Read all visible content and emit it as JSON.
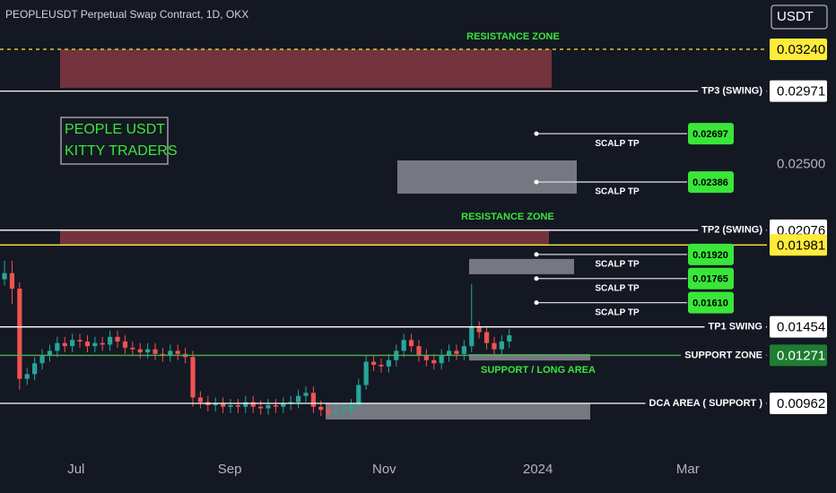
{
  "chart_data": {
    "type": "candlestick",
    "title": "PEOPLEUSDT Perpetual Swap Contract, 1D, OKX",
    "currency": "USDT",
    "annotation_box": [
      "PEOPLE USDT",
      "KITTY TRADERS"
    ],
    "up_color": "#26a69a",
    "down_color": "#ef5350",
    "open": [
      0.0176,
      0.018,
      0.017,
      0.0112,
      0.0115,
      0.0122,
      0.0127,
      0.013,
      0.0135,
      0.0133,
      0.0137,
      0.0136,
      0.0133,
      0.0135,
      0.0134,
      0.0139,
      0.0136,
      0.0132,
      0.0131,
      0.0129,
      0.0131,
      0.0128,
      0.0127,
      0.013,
      0.0128,
      0.0126,
      0.01,
      0.0097,
      0.0095,
      0.0096,
      0.0094,
      0.0095,
      0.0094,
      0.0097,
      0.0094,
      0.0093,
      0.0095,
      0.0094,
      0.0096,
      0.0097,
      0.0101,
      0.0103,
      0.0094,
      0.0092,
      0.009,
      0.0091,
      0.0092,
      0.0095,
      0.0108,
      0.0123,
      0.0121,
      0.012,
      0.0124,
      0.013,
      0.0137,
      0.0133,
      0.0127,
      0.0124,
      0.0122,
      0.0127,
      0.013,
      0.0128,
      0.0133,
      0.0145,
      0.0142,
      0.0135,
      0.0131,
      0.0136
    ],
    "high": [
      0.0188,
      0.0188,
      0.0174,
      0.0119,
      0.0126,
      0.0131,
      0.0134,
      0.0139,
      0.0139,
      0.0141,
      0.0141,
      0.014,
      0.0139,
      0.0139,
      0.0143,
      0.0143,
      0.014,
      0.0136,
      0.0135,
      0.0135,
      0.0135,
      0.0132,
      0.0134,
      0.0134,
      0.0132,
      0.013,
      0.0104,
      0.0101,
      0.01,
      0.01,
      0.0099,
      0.0099,
      0.0101,
      0.0101,
      0.0098,
      0.0099,
      0.0099,
      0.01,
      0.0101,
      0.0105,
      0.0107,
      0.0107,
      0.0098,
      0.0096,
      0.0095,
      0.0096,
      0.0099,
      0.0112,
      0.0127,
      0.0127,
      0.0125,
      0.0128,
      0.0134,
      0.0141,
      0.0141,
      0.0137,
      0.0131,
      0.0128,
      0.0131,
      0.0134,
      0.0134,
      0.0137,
      0.0173,
      0.0149,
      0.0146,
      0.0139,
      0.014,
      0.0144
    ],
    "low": [
      0.0172,
      0.016,
      0.0105,
      0.0108,
      0.0111,
      0.0118,
      0.0123,
      0.0126,
      0.0129,
      0.0129,
      0.0132,
      0.0129,
      0.0129,
      0.013,
      0.013,
      0.0132,
      0.0128,
      0.0127,
      0.0125,
      0.0125,
      0.0124,
      0.0123,
      0.0123,
      0.0124,
      0.0122,
      0.0094,
      0.0093,
      0.0091,
      0.0091,
      0.009,
      0.009,
      0.009,
      0.009,
      0.009,
      0.0089,
      0.0089,
      0.009,
      0.009,
      0.0092,
      0.0093,
      0.0097,
      0.009,
      0.0088,
      0.0087,
      0.0087,
      0.0088,
      0.0089,
      0.0092,
      0.0105,
      0.0117,
      0.0116,
      0.0116,
      0.012,
      0.0126,
      0.0129,
      0.0123,
      0.012,
      0.0118,
      0.0118,
      0.0123,
      0.0124,
      0.0124,
      0.0129,
      0.0138,
      0.0131,
      0.0127,
      0.0127,
      0.0132
    ],
    "close": [
      0.018,
      0.017,
      0.0112,
      0.0115,
      0.0122,
      0.0127,
      0.013,
      0.0135,
      0.0133,
      0.0137,
      0.0136,
      0.0133,
      0.0135,
      0.0134,
      0.0139,
      0.0136,
      0.0132,
      0.0131,
      0.0129,
      0.0131,
      0.0128,
      0.0127,
      0.013,
      0.0128,
      0.0126,
      0.01,
      0.0097,
      0.0095,
      0.0096,
      0.0094,
      0.0095,
      0.0094,
      0.0097,
      0.0094,
      0.0093,
      0.0095,
      0.0094,
      0.0096,
      0.0097,
      0.0101,
      0.0103,
      0.0094,
      0.0092,
      0.009,
      0.0091,
      0.0092,
      0.0095,
      0.0108,
      0.0123,
      0.0121,
      0.012,
      0.0124,
      0.013,
      0.0137,
      0.0133,
      0.0127,
      0.0124,
      0.0122,
      0.0127,
      0.013,
      0.0128,
      0.0133,
      0.0145,
      0.0142,
      0.0135,
      0.0131,
      0.0136,
      0.014
    ],
    "xlim": [
      -0.6,
      101.2
    ],
    "xticks": [
      {
        "value": 9.5,
        "label": "Jul"
      },
      {
        "value": 29.9,
        "label": "Sep"
      },
      {
        "value": 50.4,
        "label": "Nov"
      },
      {
        "value": 70.8,
        "label": "2024"
      },
      {
        "value": 90.7,
        "label": "Mar"
      }
    ],
    "ylim": [
      0.00616,
      0.03557
    ],
    "yticks": [
      {
        "value": 0.025,
        "label": "0.02500"
      }
    ],
    "levels": [
      {
        "value": 0.0324,
        "label": "0.03240",
        "color": "#ffeb3b",
        "dashed": true
      },
      {
        "name": "TP3 (SWING)",
        "value": 0.02971,
        "color": "#ffffff"
      },
      {
        "name": "TP2 (SWING)",
        "value": 0.02076,
        "color": "#ffffff"
      },
      {
        "value": 0.01981,
        "color": "#ffeb3b"
      },
      {
        "name": "TP1 SWING",
        "value": 0.01454,
        "color": "#ffffff"
      },
      {
        "name": "SUPPORT ZONE",
        "value": 0.01271,
        "color": "#4caf50"
      },
      {
        "name": "DCA AREA ( SUPPORT )",
        "value": 0.00962,
        "color": "#ffffff"
      }
    ],
    "scalp_targets": [
      {
        "name": "SCALP TP",
        "value": 0.02697
      },
      {
        "name": "SCALP TP",
        "value": 0.02386
      },
      {
        "name": "SCALP TP",
        "value": 0.0192,
        "label": "0.01920"
      },
      {
        "name": "SCALP TP",
        "value": 0.01765
      },
      {
        "name": "SCALP TP",
        "value": 0.0161,
        "label": "0.01610"
      }
    ],
    "zones": [
      {
        "label": "RESISTANCE ZONE",
        "top": 0.0324,
        "bottom": 0.02992,
        "color": "#7c3640"
      },
      {
        "top": 0.02525,
        "bottom": 0.02311,
        "color": "#80838c"
      },
      {
        "label": "RESISTANCE ZONE",
        "top": 0.0208,
        "bottom": 0.0198,
        "color": "#7c3640"
      },
      {
        "top": 0.01891,
        "bottom": 0.01793,
        "color": "#80838c"
      },
      {
        "label": "SUPPORT / LONG AREA",
        "top": 0.01279,
        "bottom": 0.01238,
        "color": "#80838c"
      },
      {
        "top": 0.00962,
        "bottom": 0.00858,
        "color": "#80838c"
      }
    ]
  }
}
